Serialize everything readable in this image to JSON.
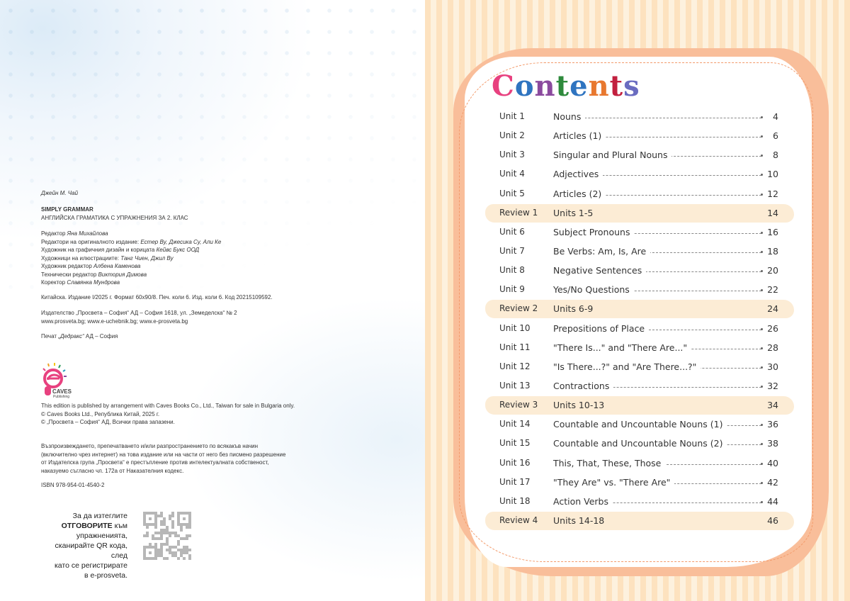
{
  "imprint": {
    "author": "Джейн М. Чай",
    "book_title": "SIMPLY GRAMMAR",
    "subtitle": "АНГЛИЙСКА ГРАМАТИКА С УПРАЖНЕНИЯ ЗА 2. КЛАС",
    "credits": [
      {
        "role": "Редактор",
        "name": "Яна Михайлова"
      },
      {
        "role": "Редактори на оригиналното издание:",
        "name": "Естер Ву, Джесика Су, Али Ке"
      },
      {
        "role": "Художник на графичния дизайн и корицата",
        "name": "Кейвс Букс ООД"
      },
      {
        "role": "Художници на илюстрациите:",
        "name": "Танг Чиен, Джил Ву"
      },
      {
        "role": "Художник редактор",
        "name": "Албена Каменова"
      },
      {
        "role": "Технически редактор",
        "name": "Виктория Димова"
      },
      {
        "role": "Коректор",
        "name": "Славянка Мундрова"
      }
    ],
    "edition_info": "Китайска. Издание I/2025 г. Формат 60x90/8. Печ. коли 6. Изд. коли 6. Код 20215109592.",
    "publisher_line": "Издателство „Просвета – София“ АД – София 1618, ул. „Земеделска“ № 2",
    "websites": "www.prosveta.bg; www.e-uchebnik.bg; www.e-prosveta.bg",
    "print_prefix": "Печат",
    "print_name": "„Дедракс“",
    "print_suffix": "АД – София",
    "logo_text": "CAVES",
    "logo_subtext": "Publishing",
    "rights": [
      "This edition is published by arrangement with Caves Books Co., Ltd., Taiwan for sale in Bulgaria only.",
      "© Caves Books Ltd., Република Китай, 2025 г.",
      "© „Просвета – София“ АД, Всички права запазени."
    ],
    "legal": [
      "Възпроизвеждането, препечатването и/или разпространението по всякакъв начин",
      "(включително чрез интернет) на това издание или на части от него без писмено разрешение",
      "от Издателска група „Просвета“ е престъпление против интелектуалната собственост,",
      "наказуемо съгласно чл. 172а от Наказателния кодекс."
    ],
    "isbn": "ISBN 978-954-01-4540-2",
    "qr_note": {
      "line1": "За да изтеглите",
      "bold": "ОТГОВОРИТЕ",
      "line2_rest": " към",
      "line3": "упражненията,",
      "line4": "сканирайте QR кода, след",
      "line5": "като се регистрирате",
      "line6": "в e-prosveta."
    }
  },
  "contents": {
    "title_letters": [
      {
        "ch": "C",
        "color": "#e8417f"
      },
      {
        "ch": "o",
        "color": "#2f74c0"
      },
      {
        "ch": "n",
        "color": "#8b4a9e"
      },
      {
        "ch": "t",
        "color": "#2e8a3c"
      },
      {
        "ch": "e",
        "color": "#2f74c0"
      },
      {
        "ch": "n",
        "color": "#e8782f"
      },
      {
        "ch": "t",
        "color": "#c2203f"
      },
      {
        "ch": "s",
        "color": "#6a6cc0"
      }
    ],
    "title": "Contents",
    "entries": [
      {
        "label": "Unit 1",
        "title": "Nouns",
        "page": "4",
        "review": false
      },
      {
        "label": "Unit 2",
        "title": "Articles (1)",
        "page": "6",
        "review": false
      },
      {
        "label": "Unit 3",
        "title": "Singular and Plural Nouns",
        "page": "8",
        "review": false
      },
      {
        "label": "Unit 4",
        "title": "Adjectives",
        "page": "10",
        "review": false
      },
      {
        "label": "Unit 5",
        "title": "Articles (2)",
        "page": "12",
        "review": false
      },
      {
        "label": "Review 1",
        "title": "Units 1-5",
        "page": "14",
        "review": true
      },
      {
        "label": "Unit 6",
        "title": "Subject Pronouns",
        "page": "16",
        "review": false
      },
      {
        "label": "Unit 7",
        "title": "Be Verbs: Am, Is, Are",
        "page": "18",
        "review": false
      },
      {
        "label": "Unit 8",
        "title": "Negative Sentences",
        "page": "20",
        "review": false
      },
      {
        "label": "Unit 9",
        "title": "Yes/No Questions",
        "page": "22",
        "review": false
      },
      {
        "label": "Review 2",
        "title": "Units 6-9",
        "page": "24",
        "review": true
      },
      {
        "label": "Unit 10",
        "title": "Prepositions of Place",
        "page": "26",
        "review": false
      },
      {
        "label": "Unit 11",
        "title": "\"There Is...\" and \"There Are...\"",
        "page": "28",
        "review": false
      },
      {
        "label": "Unit 12",
        "title": "\"Is There...?\" and \"Are There...?\"",
        "page": "30",
        "review": false
      },
      {
        "label": "Unit 13",
        "title": "Contractions",
        "page": "32",
        "review": false
      },
      {
        "label": "Review 3",
        "title": "Units 10-13",
        "page": "34",
        "review": true
      },
      {
        "label": "Unit 14",
        "title": "Countable and Uncountable Nouns (1)",
        "page": "36",
        "review": false
      },
      {
        "label": "Unit 15",
        "title": "Countable and Uncountable Nouns (2)",
        "page": "38",
        "review": false
      },
      {
        "label": "Unit 16",
        "title": "This, That, These, Those",
        "page": "40",
        "review": false
      },
      {
        "label": "Unit 17",
        "title": "\"They Are\" vs. \"There Are\"",
        "page": "42",
        "review": false
      },
      {
        "label": "Unit 18",
        "title": "Action Verbs",
        "page": "44",
        "review": false
      },
      {
        "label": "Review 4",
        "title": "Units 14-18",
        "page": "46",
        "review": true
      }
    ]
  },
  "colors": {
    "stripe_a": "#fde2bf",
    "stripe_b": "#fdf1de",
    "frame": "#f9be9a",
    "review_highlight": "#fcecd5",
    "dashed_border": "#f39a6a"
  }
}
